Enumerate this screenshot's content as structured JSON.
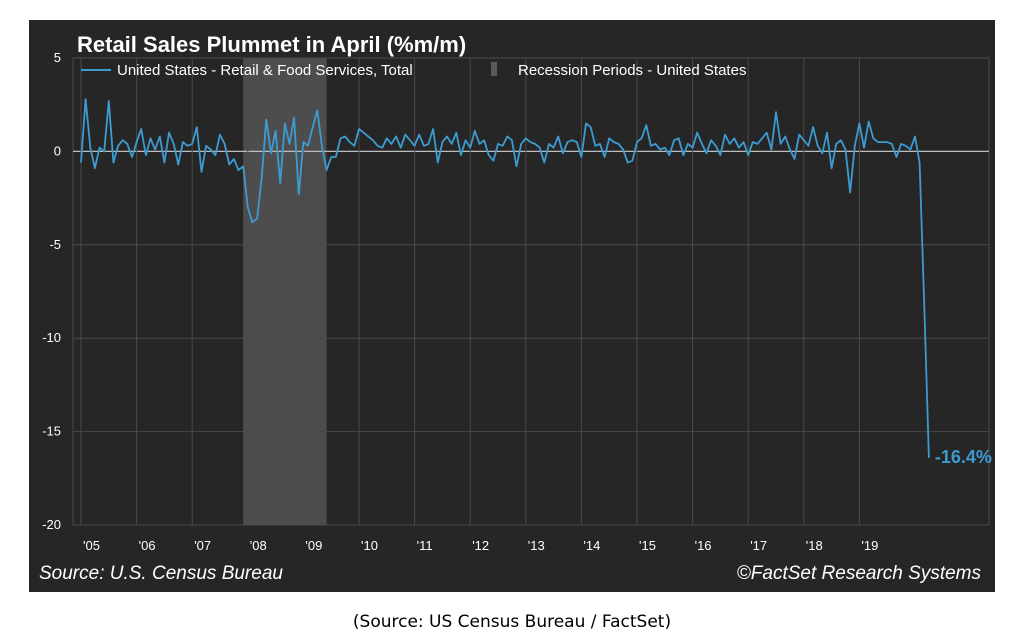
{
  "chart_data": {
    "type": "line",
    "title": "Retail Sales Plummet in April (%m/m)",
    "series": [
      {
        "name": "United States - Retail & Food Services, Total",
        "color": "#3d9bd1",
        "start": "2005-01",
        "frequency": "monthly",
        "values": [
          -0.6,
          2.8,
          0.2,
          -0.9,
          0.2,
          0.0,
          2.7,
          -0.6,
          0.3,
          0.6,
          0.4,
          -0.3,
          0.5,
          1.2,
          -0.2,
          0.7,
          0.1,
          0.8,
          -0.6,
          1.0,
          0.4,
          -0.7,
          0.5,
          0.3,
          0.4,
          1.3,
          -1.1,
          0.3,
          0.1,
          -0.2,
          0.9,
          0.4,
          -0.7,
          -0.4,
          -1.0,
          -0.8,
          -3.0,
          -3.8,
          -3.6,
          -1.4,
          1.7,
          -0.1,
          1.1,
          -1.7,
          1.5,
          0.4,
          1.8,
          -2.3,
          0.5,
          0.3,
          1.3,
          2.2,
          0.3,
          -1.0,
          -0.3,
          -0.3,
          0.7,
          0.8,
          0.5,
          0.3,
          1.2,
          1.0,
          0.8,
          0.6,
          0.3,
          0.2,
          0.7,
          0.4,
          0.8,
          0.2,
          0.9,
          0.6,
          0.3,
          0.9,
          0.3,
          0.4,
          1.2,
          -0.6,
          0.5,
          0.8,
          0.4,
          1.0,
          -0.2,
          0.6,
          0.2,
          1.1,
          0.4,
          0.6,
          -0.2,
          -0.5,
          0.4,
          0.3,
          0.8,
          0.6,
          -0.8,
          0.4,
          0.7,
          0.5,
          0.4,
          0.2,
          -0.6,
          0.4,
          0.2,
          0.8,
          -0.1,
          0.5,
          0.6,
          0.5,
          -0.3,
          1.5,
          1.3,
          0.3,
          0.4,
          -0.3,
          0.7,
          0.5,
          0.4,
          0.1,
          -0.6,
          -0.5,
          0.5,
          0.7,
          1.4,
          0.3,
          0.4,
          0.1,
          0.2,
          -0.2,
          0.6,
          0.7,
          -0.2,
          0.4,
          0.2,
          1.0,
          0.4,
          -0.1,
          0.6,
          0.3,
          -0.2,
          0.9,
          0.4,
          0.7,
          0.2,
          0.5,
          -0.2,
          0.5,
          0.4,
          0.7,
          1.0,
          0.1,
          2.1,
          0.4,
          0.8,
          0.1,
          -0.4,
          0.9,
          0.6,
          0.3,
          1.3,
          0.3,
          -0.1,
          1.0,
          -0.9,
          0.4,
          0.6,
          0.1,
          -2.2,
          0.3,
          1.5,
          0.2,
          1.6,
          0.7,
          0.5,
          0.5,
          0.5,
          0.4,
          -0.3,
          0.4,
          0.3,
          0.1,
          0.8,
          -0.6,
          -8.3,
          -16.4
        ]
      },
      {
        "name": "Recession Periods - United States",
        "color": "#4d4d4d",
        "periods": [
          {
            "start": "2007-12",
            "end": "2009-06"
          }
        ]
      }
    ],
    "ylim": [
      -20,
      5
    ],
    "yticks": [
      5,
      0,
      -5,
      -10,
      -15,
      -20
    ],
    "xticks": [
      "'05",
      "'06",
      "'07",
      "'08",
      "'09",
      "'10",
      "'11",
      "'12",
      "'13",
      "'14",
      "'15",
      "'16",
      "'17",
      "'18",
      "'19"
    ],
    "zero_line": true,
    "grid": true,
    "legend_position": "top-left",
    "annotation": {
      "text": "-16.4%",
      "color": "#3d9bd1"
    },
    "source_text": "Source: U.S. Census Bureau",
    "credit_text": "©FactSet Research Systems"
  },
  "caption": "(Source:  US Census Bureau / FactSet)"
}
